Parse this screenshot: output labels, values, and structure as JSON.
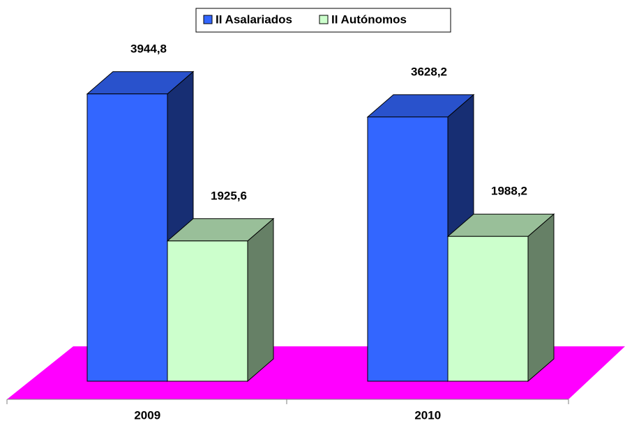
{
  "chart_data": {
    "type": "bar3d",
    "categories": [
      "2009",
      "2010"
    ],
    "series": [
      {
        "name": "II Asalariados",
        "color": "#3366ff",
        "values": [
          3944.8,
          3628.2
        ],
        "value_labels": [
          "3944,8",
          "3628,2"
        ]
      },
      {
        "name": "II Autónomos",
        "color": "#ccffcc",
        "values": [
          1925.6,
          1988.2
        ],
        "value_labels": [
          "1925,6",
          "1988,2"
        ]
      }
    ],
    "legend": "top"
  }
}
